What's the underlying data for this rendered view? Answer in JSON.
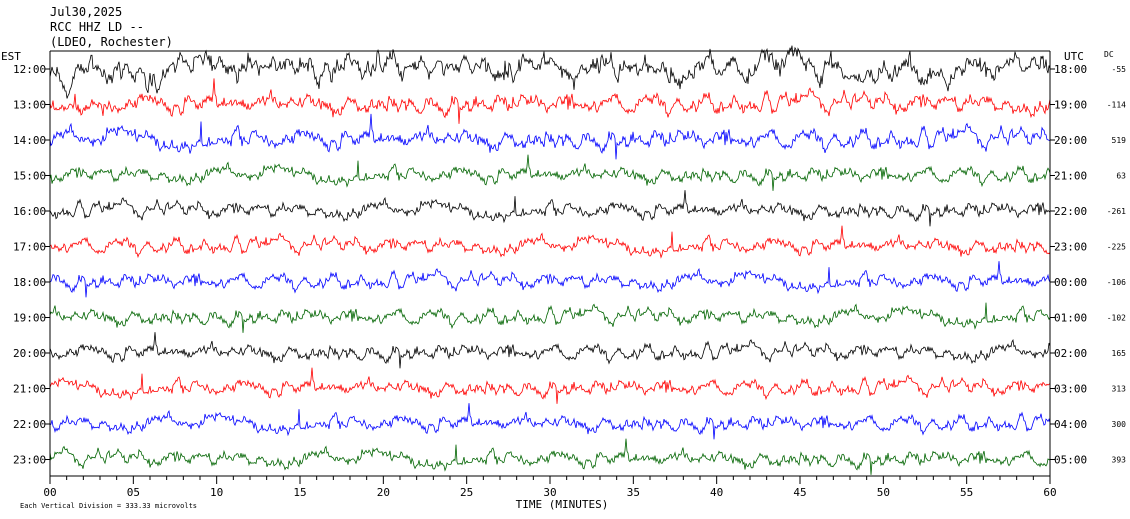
{
  "header": {
    "date": "Jul30,2025",
    "station": "RCC HHZ LD --",
    "network": "(LDEO, Rochester)"
  },
  "chart_data": {
    "type": "line",
    "title": "",
    "xlabel": "TIME (MINUTES)",
    "x_ticks": [
      "00",
      "05",
      "10",
      "15",
      "20",
      "25",
      "30",
      "35",
      "40",
      "45",
      "50",
      "55",
      "60"
    ],
    "xlim": [
      0,
      60
    ],
    "left_axis_title": "EST",
    "right_axis_title": "UTC",
    "dc_title": "DC",
    "scale_note": "Each Vertical Division = 333.33 microvolts",
    "trace_colors": [
      "#000000",
      "#ff0000",
      "#0000ff",
      "#006400"
    ],
    "traces": [
      {
        "est": "12:00",
        "utc": "18:00",
        "dc": "-55"
      },
      {
        "est": "13:00",
        "utc": "19:00",
        "dc": "-114"
      },
      {
        "est": "14:00",
        "utc": "20:00",
        "dc": "519"
      },
      {
        "est": "15:00",
        "utc": "21:00",
        "dc": "63"
      },
      {
        "est": "16:00",
        "utc": "22:00",
        "dc": "-261"
      },
      {
        "est": "17:00",
        "utc": "23:00",
        "dc": "-225"
      },
      {
        "est": "18:00",
        "utc": "00:00",
        "dc": "-106"
      },
      {
        "est": "19:00",
        "utc": "01:00",
        "dc": "-102"
      },
      {
        "est": "20:00",
        "utc": "02:00",
        "dc": "165"
      },
      {
        "est": "21:00",
        "utc": "03:00",
        "dc": "313"
      },
      {
        "est": "22:00",
        "utc": "04:00",
        "dc": "300"
      },
      {
        "est": "23:00",
        "utc": "05:00",
        "dc": "393"
      }
    ]
  }
}
